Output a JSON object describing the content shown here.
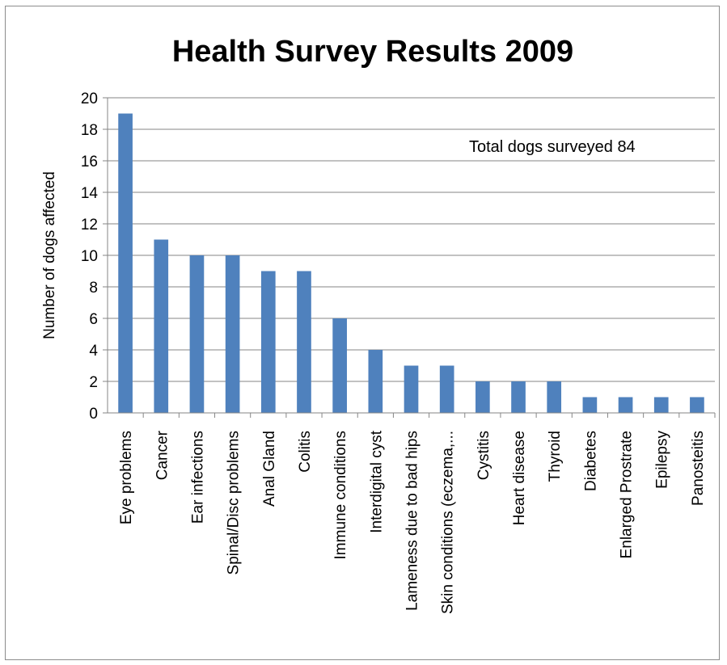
{
  "chart_data": {
    "type": "bar",
    "title": "Health Survey Results 2009",
    "xlabel": "",
    "ylabel": "Number of dogs affected",
    "ylim": [
      0,
      20
    ],
    "yticks": [
      0,
      2,
      4,
      6,
      8,
      10,
      12,
      14,
      16,
      18,
      20
    ],
    "grid": true,
    "legend": "none",
    "annotation": "Total dogs surveyed  84",
    "bar_color": "#4f81bd",
    "categories": [
      "Eye problems",
      "Cancer",
      "Ear infections",
      "Spinal/Disc problems",
      "Anal Gland",
      "Colitis",
      "Immune conditions",
      "Interdigital cyst",
      "Lameness due to bad hips",
      "Skin conditions (eczema,...",
      "Cystitis",
      "Heart disease",
      "Thyroid",
      "Diabetes",
      "Enlarged Prostrate",
      "Epilepsy",
      "Panosteitis"
    ],
    "values": [
      19,
      11,
      10,
      10,
      9,
      9,
      6,
      4,
      3,
      3,
      2,
      2,
      2,
      1,
      1,
      1,
      1
    ]
  }
}
